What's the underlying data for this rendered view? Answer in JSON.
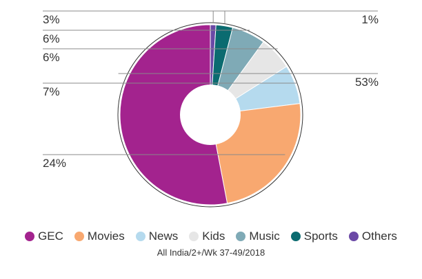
{
  "chart_data": {
    "type": "pie",
    "categories": [
      "GEC",
      "Movies",
      "News",
      "Kids",
      "Music",
      "Sports",
      "Others"
    ],
    "values": [
      53,
      24,
      7,
      6,
      6,
      3,
      1
    ],
    "value_labels": [
      "53%",
      "24%",
      "7%",
      "6%",
      "6%",
      "3%",
      "1%"
    ],
    "colors": [
      "#A3238E",
      "#F8A870",
      "#B5DAEE",
      "#E6E6E6",
      "#7FAAB6",
      "#0B6B70",
      "#6B49A6"
    ],
    "donut": true,
    "legend_position": "bottom",
    "footnote": "All India/2+/Wk 37-49/2018"
  }
}
